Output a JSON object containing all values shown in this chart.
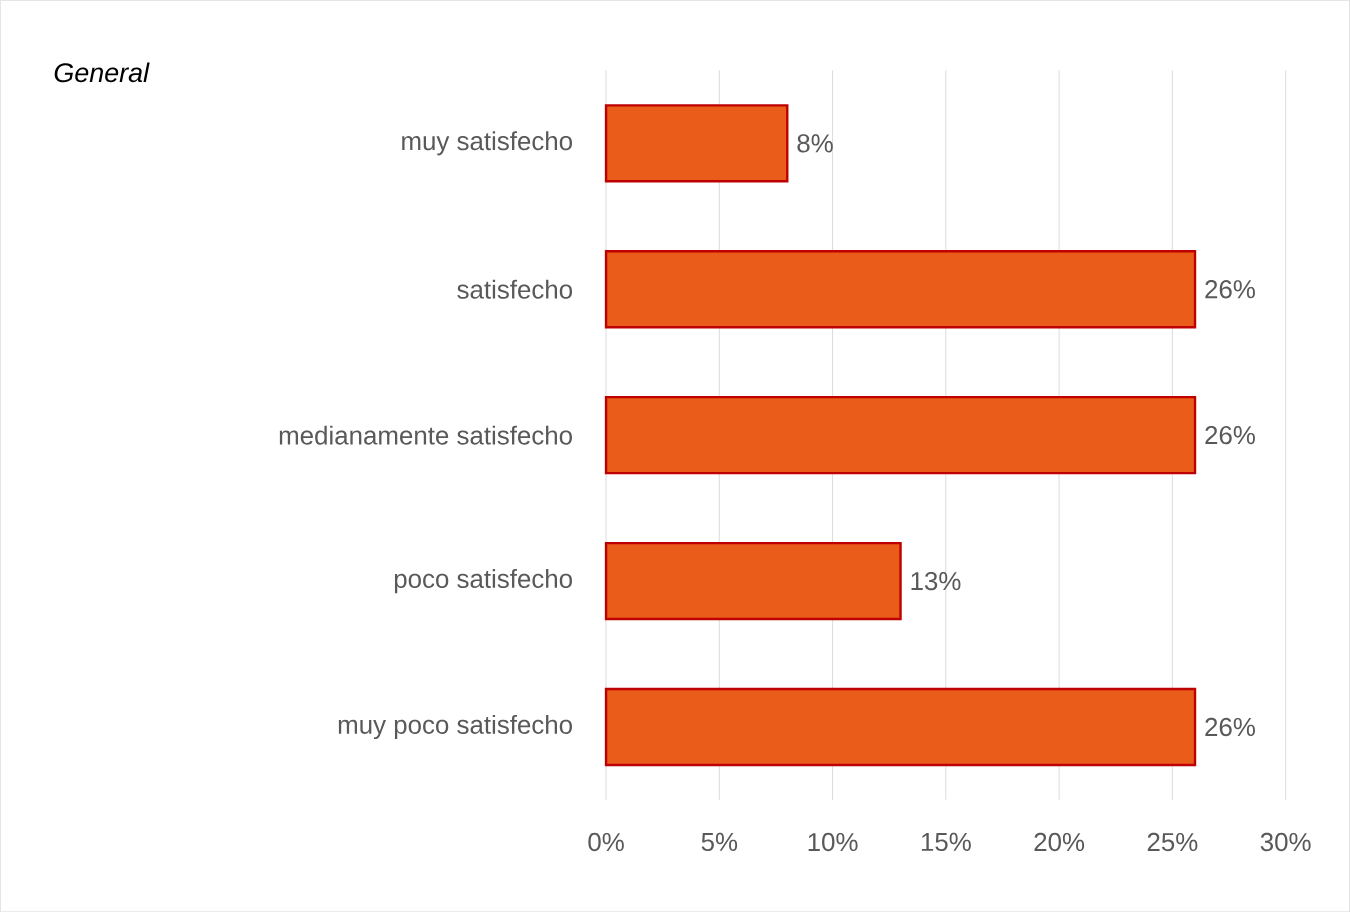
{
  "chart_data": {
    "type": "bar",
    "orientation": "horizontal",
    "title": "General",
    "categories": [
      "muy satisfecho",
      "satisfecho",
      "medianamente satisfecho",
      "poco satisfecho",
      "muy poco satisfecho"
    ],
    "values": [
      8,
      26,
      26,
      13,
      26
    ],
    "value_labels": [
      "8%",
      "26%",
      "26%",
      "13%",
      "26%"
    ],
    "color": "#ea5c19",
    "xlim": [
      0,
      30
    ],
    "xticks": [
      {
        "value": 0,
        "label": "0%"
      },
      {
        "value": 5,
        "label": "5%"
      },
      {
        "value": 10,
        "label": "10%"
      },
      {
        "value": 15,
        "label": "15%"
      },
      {
        "value": 20,
        "label": "20%"
      },
      {
        "value": 25,
        "label": "25%"
      },
      {
        "value": 30,
        "label": "30%"
      }
    ],
    "grid": "x"
  }
}
